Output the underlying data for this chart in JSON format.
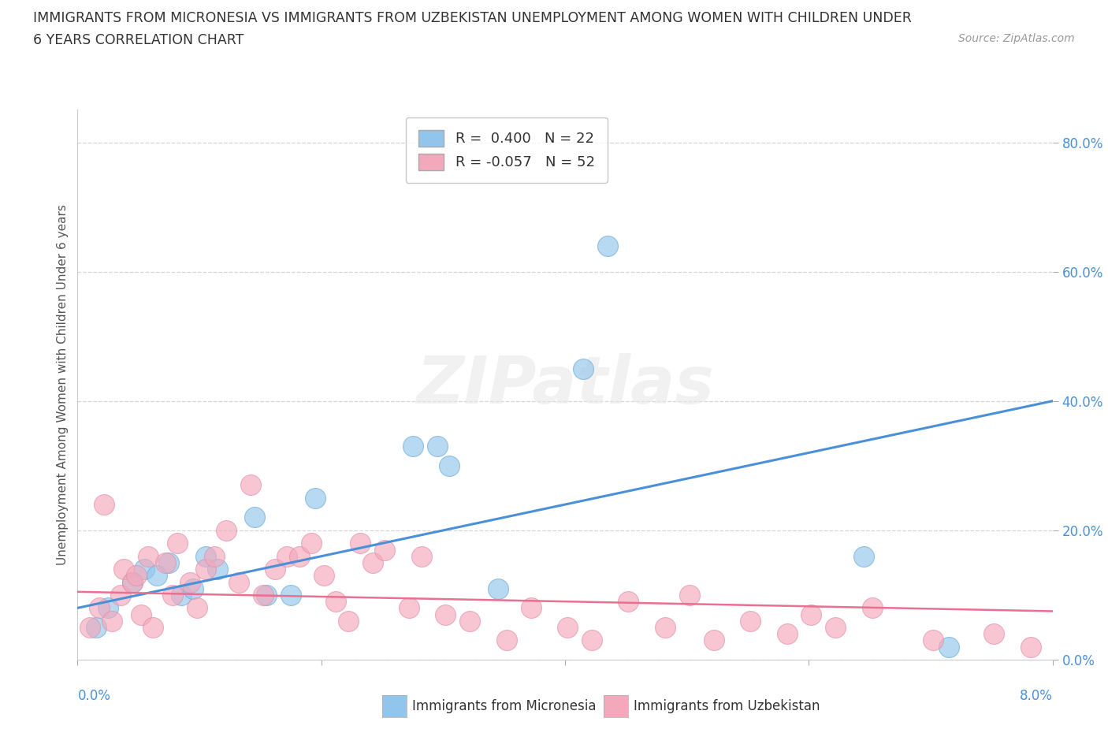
{
  "title_line1": "IMMIGRANTS FROM MICRONESIA VS IMMIGRANTS FROM UZBEKISTAN UNEMPLOYMENT AMONG WOMEN WITH CHILDREN UNDER",
  "title_line2": "6 YEARS CORRELATION CHART",
  "source": "Source: ZipAtlas.com",
  "xlabel_bottom_left": "0.0%",
  "xlabel_bottom_right": "8.0%",
  "ylabel": "Unemployment Among Women with Children Under 6 years",
  "xlim": [
    0.0,
    8.0
  ],
  "ylim": [
    0.0,
    85.0
  ],
  "yticks": [
    0,
    20,
    40,
    60,
    80
  ],
  "legend_blue_r": "R =  0.400",
  "legend_blue_n": "N = 22",
  "legend_pink_r": "R = -0.057",
  "legend_pink_n": "N = 52",
  "label_blue": "Immigrants from Micronesia",
  "label_pink": "Immigrants from Uzbekistan",
  "color_blue": "#92C5EC",
  "color_pink": "#F4A8BB",
  "line_blue": "#4A90D9",
  "line_pink": "#E87090",
  "watermark": "ZIPatlas",
  "blue_scatter_x": [
    0.15,
    0.25,
    0.45,
    0.55,
    0.65,
    0.75,
    0.85,
    0.95,
    1.05,
    1.15,
    1.45,
    1.55,
    1.75,
    1.95,
    2.75,
    2.95,
    3.05,
    3.45,
    4.15,
    4.35,
    6.45,
    7.15
  ],
  "blue_scatter_y": [
    5.0,
    8.0,
    12.0,
    14.0,
    13.0,
    15.0,
    10.0,
    11.0,
    16.0,
    14.0,
    22.0,
    10.0,
    10.0,
    25.0,
    33.0,
    33.0,
    30.0,
    11.0,
    45.0,
    64.0,
    16.0,
    2.0
  ],
  "pink_scatter_x": [
    0.1,
    0.18,
    0.22,
    0.28,
    0.35,
    0.38,
    0.45,
    0.48,
    0.52,
    0.58,
    0.62,
    0.72,
    0.78,
    0.82,
    0.92,
    0.98,
    1.05,
    1.12,
    1.22,
    1.32,
    1.42,
    1.52,
    1.62,
    1.72,
    1.82,
    1.92,
    2.02,
    2.12,
    2.22,
    2.32,
    2.42,
    2.52,
    2.72,
    2.82,
    3.02,
    3.22,
    3.52,
    3.72,
    4.02,
    4.22,
    4.52,
    4.82,
    5.02,
    5.22,
    5.52,
    5.82,
    6.02,
    6.22,
    6.52,
    7.02,
    7.52,
    7.82
  ],
  "pink_scatter_y": [
    5.0,
    8.0,
    24.0,
    6.0,
    10.0,
    14.0,
    12.0,
    13.0,
    7.0,
    16.0,
    5.0,
    15.0,
    10.0,
    18.0,
    12.0,
    8.0,
    14.0,
    16.0,
    20.0,
    12.0,
    27.0,
    10.0,
    14.0,
    16.0,
    16.0,
    18.0,
    13.0,
    9.0,
    6.0,
    18.0,
    15.0,
    17.0,
    8.0,
    16.0,
    7.0,
    6.0,
    3.0,
    8.0,
    5.0,
    3.0,
    9.0,
    5.0,
    10.0,
    3.0,
    6.0,
    4.0,
    7.0,
    5.0,
    8.0,
    3.0,
    4.0,
    2.0
  ],
  "blue_line_x": [
    0.0,
    8.0
  ],
  "blue_line_y": [
    8.0,
    40.0
  ],
  "pink_line_x": [
    0.0,
    8.0
  ],
  "pink_line_y": [
    10.5,
    7.5
  ]
}
